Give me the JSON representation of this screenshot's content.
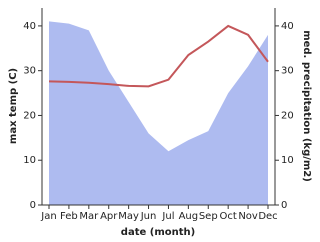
{
  "chart_data": {
    "type": "line-area",
    "categories": [
      "Jan",
      "Feb",
      "Mar",
      "Apr",
      "May",
      "Jun",
      "Jul",
      "Aug",
      "Sep",
      "Oct",
      "Nov",
      "Dec"
    ],
    "x_label": "date (month)",
    "y_label": "max temp (C)",
    "y2_label": "med. precipitation (kg/m2)",
    "ylim": [
      0,
      44
    ],
    "yticks": [
      0,
      10,
      20,
      30,
      40
    ],
    "y2lim": [
      0,
      44
    ],
    "y2ticks": [
      0,
      10,
      20,
      30,
      40
    ],
    "series": [
      {
        "name": "med. precipitation",
        "type": "area",
        "axis": "y2",
        "color": "#aebbf0",
        "values": [
          41,
          40.5,
          39,
          30,
          23,
          16,
          12,
          14.5,
          16.5,
          25,
          31,
          38
        ]
      },
      {
        "name": "max temp",
        "type": "line",
        "axis": "y",
        "color": "#c4575a",
        "values": [
          27.6,
          27.5,
          27.3,
          27,
          26.6,
          26.5,
          28,
          33.5,
          36.5,
          40,
          38,
          32
        ]
      }
    ]
  }
}
